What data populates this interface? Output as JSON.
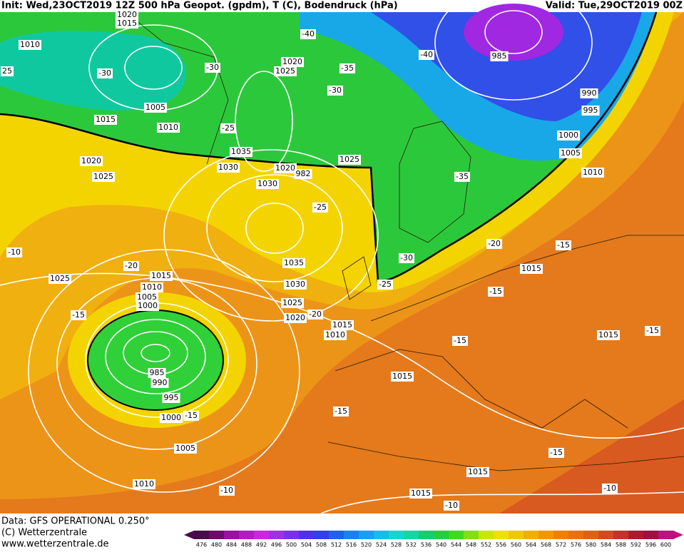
{
  "header": {
    "init": "Init: Wed,23OCT2019 12Z 500 hPa Geopot. (gpdm), T (C), Bodendruck (hPa)",
    "valid": "Valid: Tue,29OCT2019 00Z"
  },
  "footer": {
    "data": "Data: GFS OPERATIONAL 0.250°",
    "copyright": "(C) Wetterzentrale",
    "url": "www.wetterzentrale.de"
  },
  "colorbar": {
    "values": [
      476,
      480,
      484,
      488,
      492,
      496,
      500,
      504,
      508,
      512,
      516,
      520,
      524,
      528,
      532,
      536,
      540,
      544,
      548,
      552,
      556,
      560,
      564,
      568,
      572,
      576,
      580,
      584,
      588,
      592,
      596,
      600
    ],
    "colors": [
      "#4b0a4b",
      "#6e0a6e",
      "#9a10a0",
      "#b818c0",
      "#c828dc",
      "#a030e8",
      "#7a30f0",
      "#5030f0",
      "#3040f0",
      "#2060f0",
      "#1c80f0",
      "#18a0f0",
      "#10c0e8",
      "#10d8d0",
      "#10d8a0",
      "#10d070",
      "#20d040",
      "#40d820",
      "#80e010",
      "#c8e800",
      "#f0e000",
      "#f0c800",
      "#f0b000",
      "#f09800",
      "#f08000",
      "#e87010",
      "#e06018",
      "#d84820",
      "#c83028",
      "#b01830",
      "#a01040",
      "#c01080"
    ]
  },
  "contour_labels": [
    "1015",
    "1020",
    "1010",
    "25",
    "-30",
    "-30",
    "1020",
    "1025",
    "-35",
    "-30",
    "-40",
    "-40",
    "985",
    "990",
    "995",
    "1000",
    "1005",
    "1010",
    "1005",
    "1010",
    "1015",
    "-25",
    "1035",
    "1030",
    "1020",
    "982",
    "1025",
    "1030",
    "1020",
    "1025",
    "-25",
    "-35",
    "-20",
    "-15",
    "-10",
    "-20",
    "1015",
    "1010",
    "1005",
    "1000",
    "1035",
    "1030",
    "1025",
    "1020",
    "-20",
    "-30",
    "-25",
    "1015",
    "-15",
    "1015",
    "1010",
    "-15",
    "1025",
    "1015",
    "-15",
    "-15",
    "985",
    "990",
    "995",
    "1000",
    "-15",
    "1015",
    "-15",
    "1005",
    "-15",
    "1015",
    "1010",
    "-10",
    "1015",
    "-10",
    "-10"
  ]
}
